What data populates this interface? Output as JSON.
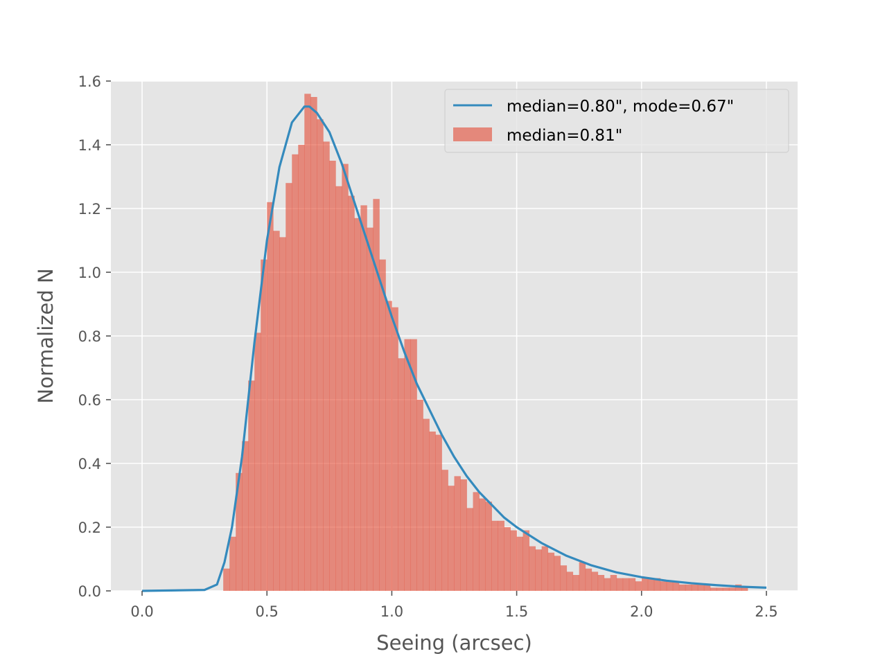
{
  "chart_data": {
    "type": "bar",
    "title": "",
    "xlabel": "Seeing (arcsec)",
    "ylabel": "Normalized N",
    "xlim": [
      -0.125,
      2.625
    ],
    "ylim": [
      0.0,
      1.6
    ],
    "xticks": [
      0.0,
      0.5,
      1.0,
      1.5,
      2.0,
      2.5
    ],
    "xtick_labels": [
      "0.0",
      "0.5",
      "1.0",
      "1.5",
      "2.0",
      "2.5"
    ],
    "yticks": [
      0.0,
      0.2,
      0.4,
      0.6,
      0.8,
      1.0,
      1.2,
      1.4,
      1.6
    ],
    "ytick_labels": [
      "0.0",
      "0.2",
      "0.4",
      "0.6",
      "0.8",
      "1.0",
      "1.2",
      "1.4",
      "1.6"
    ],
    "grid": true,
    "legend_position": "top-right",
    "series": [
      {
        "name": "median=0.80\", mode=0.67\"",
        "kind": "line",
        "color": "#348abd",
        "x": [
          0.0,
          0.25,
          0.3,
          0.33,
          0.36,
          0.4,
          0.45,
          0.5,
          0.55,
          0.6,
          0.65,
          0.67,
          0.7,
          0.75,
          0.8,
          0.85,
          0.9,
          0.95,
          1.0,
          1.05,
          1.1,
          1.15,
          1.2,
          1.25,
          1.3,
          1.35,
          1.4,
          1.45,
          1.5,
          1.6,
          1.7,
          1.8,
          1.9,
          2.0,
          2.1,
          2.2,
          2.3,
          2.4,
          2.5
        ],
        "y": [
          0.0,
          0.003,
          0.02,
          0.09,
          0.2,
          0.42,
          0.78,
          1.1,
          1.33,
          1.47,
          1.52,
          1.52,
          1.5,
          1.44,
          1.34,
          1.22,
          1.1,
          0.98,
          0.86,
          0.75,
          0.65,
          0.57,
          0.49,
          0.42,
          0.36,
          0.31,
          0.27,
          0.23,
          0.2,
          0.15,
          0.11,
          0.08,
          0.058,
          0.043,
          0.032,
          0.024,
          0.018,
          0.013,
          0.01
        ]
      },
      {
        "name": "median=0.81\"",
        "kind": "histogram",
        "color": "#e24a33",
        "bin_width": 0.025,
        "bin_start": 0.325,
        "values": [
          0.07,
          0.17,
          0.37,
          0.47,
          0.66,
          0.81,
          1.04,
          1.22,
          1.13,
          1.11,
          1.28,
          1.37,
          1.4,
          1.56,
          1.55,
          1.48,
          1.41,
          1.35,
          1.27,
          1.34,
          1.24,
          1.17,
          1.21,
          1.14,
          1.23,
          1.04,
          0.91,
          0.89,
          0.73,
          0.79,
          0.79,
          0.6,
          0.54,
          0.5,
          0.49,
          0.38,
          0.33,
          0.36,
          0.35,
          0.26,
          0.31,
          0.29,
          0.28,
          0.22,
          0.22,
          0.2,
          0.19,
          0.17,
          0.19,
          0.14,
          0.13,
          0.14,
          0.12,
          0.11,
          0.08,
          0.06,
          0.05,
          0.09,
          0.07,
          0.06,
          0.05,
          0.04,
          0.05,
          0.04,
          0.04,
          0.04,
          0.03,
          0.04,
          0.04,
          0.04,
          0.03,
          0.03,
          0.03,
          0.02,
          0.02,
          0.02,
          0.02,
          0.02,
          0.01,
          0.01,
          0.01,
          0.01,
          0.02,
          0.01
        ]
      }
    ]
  }
}
